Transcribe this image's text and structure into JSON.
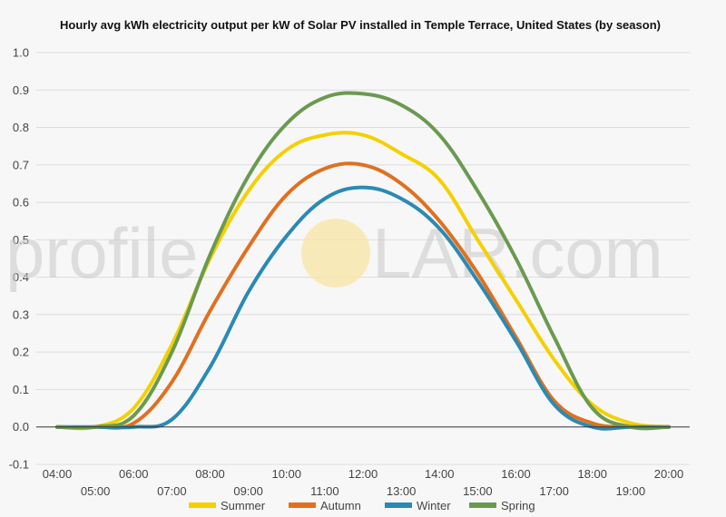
{
  "chart_data": {
    "type": "line",
    "title": "Hourly avg kWh electricity output per kW of Solar PV installed in Temple Terrace, United States (by season)",
    "xlabel": "",
    "ylabel": "",
    "ylim": [
      -0.1,
      1.0
    ],
    "yticks": [
      "-0.1",
      "0.0",
      "0.1",
      "0.2",
      "0.3",
      "0.4",
      "0.5",
      "0.6",
      "0.7",
      "0.8",
      "0.9",
      "1.0"
    ],
    "yticks_values": [
      -0.1,
      0.0,
      0.1,
      0.2,
      0.3,
      0.4,
      0.5,
      0.6,
      0.7,
      0.8,
      0.9,
      1.0
    ],
    "x": [
      "04:00",
      "05:00",
      "06:00",
      "07:00",
      "08:00",
      "09:00",
      "10:00",
      "11:00",
      "12:00",
      "13:00",
      "14:00",
      "15:00",
      "16:00",
      "17:00",
      "18:00",
      "19:00",
      "20:00"
    ],
    "grid": true,
    "legend_position": "bottom",
    "series": [
      {
        "name": "Summer",
        "color": "#f5d000",
        "values": [
          0.0,
          0.0,
          0.05,
          0.22,
          0.45,
          0.63,
          0.74,
          0.78,
          0.78,
          0.73,
          0.66,
          0.5,
          0.34,
          0.18,
          0.06,
          0.01,
          0.0
        ]
      },
      {
        "name": "Autumn",
        "color": "#e07020",
        "values": [
          0.0,
          0.0,
          0.01,
          0.12,
          0.31,
          0.48,
          0.62,
          0.69,
          0.7,
          0.65,
          0.55,
          0.41,
          0.24,
          0.07,
          0.01,
          0.0,
          0.0
        ]
      },
      {
        "name": "Winter",
        "color": "#2b8ab3",
        "values": [
          0.0,
          0.0,
          0.0,
          0.02,
          0.16,
          0.36,
          0.51,
          0.61,
          0.64,
          0.61,
          0.53,
          0.39,
          0.23,
          0.06,
          0.0,
          0.0,
          0.0
        ]
      },
      {
        "name": "Spring",
        "color": "#6a9a50",
        "values": [
          0.0,
          0.0,
          0.03,
          0.2,
          0.46,
          0.67,
          0.81,
          0.88,
          0.89,
          0.86,
          0.78,
          0.63,
          0.45,
          0.24,
          0.05,
          0.0,
          0.0
        ]
      }
    ]
  },
  "watermark": {
    "left": "profile",
    "right": "LAR.com",
    "sun_color": "#f7e6a8"
  }
}
